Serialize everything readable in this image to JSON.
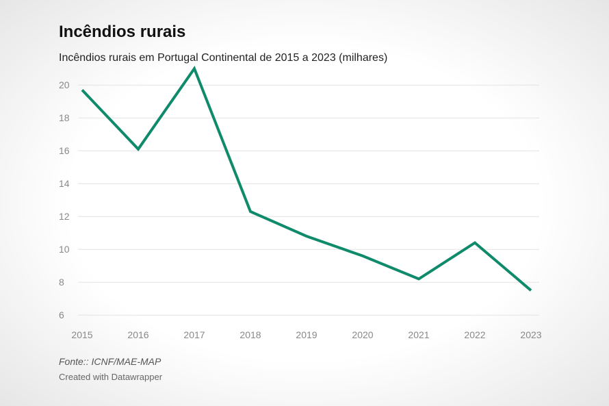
{
  "header": {
    "title": "Incêndios rurais",
    "subtitle": "Incêndios rurais em Portugal Continental de 2015 a 2023 (milhares)"
  },
  "footer": {
    "source": "Fonte:: ICNF/MAE-MAP",
    "credit": "Created with Datawrapper"
  },
  "colors": {
    "line": "#0f8a6a",
    "grid": "#e3e3e3",
    "tick_text": "#888888"
  },
  "chart_data": {
    "type": "line",
    "title": "Incêndios rurais",
    "subtitle": "Incêndios rurais em Portugal Continental de 2015 a 2023 (milhares)",
    "x": [
      "2015",
      "2016",
      "2017",
      "2018",
      "2019",
      "2020",
      "2021",
      "2022",
      "2023"
    ],
    "series": [
      {
        "values": [
          19.7,
          16.1,
          21.0,
          12.3,
          10.8,
          9.6,
          8.2,
          10.4,
          7.5
        ]
      }
    ],
    "yticks": [
      6,
      8,
      10,
      12,
      14,
      16,
      18,
      20
    ],
    "ylim": [
      5.8,
      20.8
    ],
    "grid": true,
    "legend": "none",
    "xlabel": "",
    "ylabel": ""
  }
}
